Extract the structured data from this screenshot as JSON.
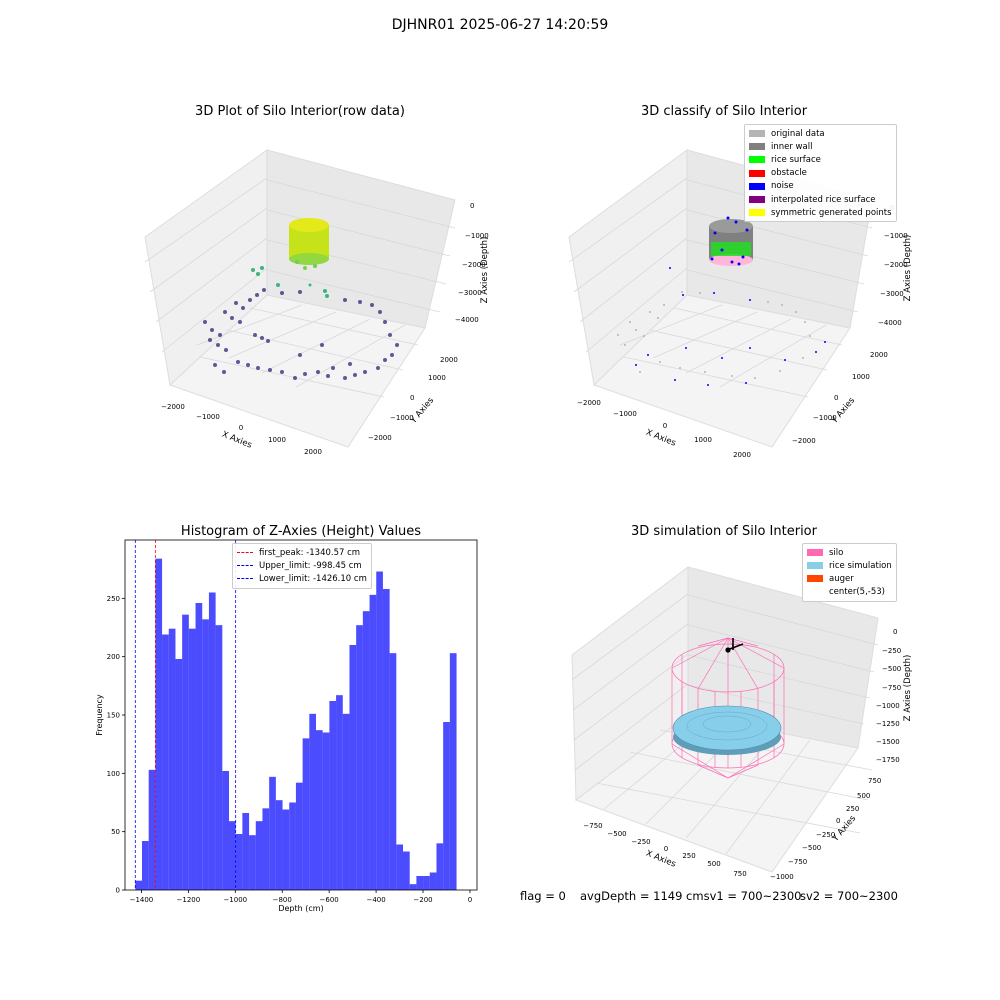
{
  "page": {
    "suptitle": "DJHNR01 2025-06-27 14:20:59",
    "status": {
      "flag": "flag = 0",
      "avg_depth": "avgDepth = 1149 cmsv1 = 700~2300",
      "sv2": "sv2 = 700~2300"
    }
  },
  "panels": {
    "raw": {
      "title": "3D Plot of Silo Interior(row data)",
      "xlabel": "X Axies",
      "ylabel": "Y Axies",
      "zlabel": "Z Axies (Depth)",
      "x_ticks": [
        "−2000",
        "−1000",
        "0",
        "1000",
        "2000"
      ],
      "y_ticks": [
        "2000",
        "1000",
        "0",
        "−1000",
        "−2000"
      ],
      "z_ticks": [
        "0",
        "−1000",
        "−2000",
        "−3000",
        "−4000"
      ]
    },
    "classify": {
      "title": "3D classify of Silo Interior",
      "xlabel": "X Axies",
      "ylabel": "Y Axies",
      "zlabel": "Z Axies (Depth)",
      "x_ticks": [
        "−2000",
        "−1000",
        "0",
        "1000",
        "2000"
      ],
      "y_ticks": [
        "2000",
        "1000",
        "0",
        "−1000",
        "−2000"
      ],
      "z_ticks": [
        "0",
        "−1000",
        "−2000",
        "−3000",
        "−4000"
      ],
      "legend": [
        {
          "label": "original data",
          "color": "#b4b4b4"
        },
        {
          "label": "inner wall",
          "color": "#808080"
        },
        {
          "label": "rice surface",
          "color": "#00ff00"
        },
        {
          "label": "obstacle",
          "color": "#ff0000"
        },
        {
          "label": "noise",
          "color": "#0000ff"
        },
        {
          "label": "interpolated rice surface",
          "color": "#800080"
        },
        {
          "label": "symmetric generated points",
          "color": "#ffff00"
        }
      ]
    },
    "simulation": {
      "title": "3D simulation of Silo Interior",
      "xlabel": "X Axies",
      "ylabel": "Y Axies",
      "zlabel": "Z Axies (Depth)",
      "x_ticks": [
        "−750",
        "−500",
        "−250",
        "0",
        "250",
        "500",
        "750"
      ],
      "y_ticks": [
        "750",
        "500",
        "250",
        "0",
        "−250",
        "−500",
        "−750",
        "−1000"
      ],
      "z_ticks": [
        "0",
        "−250",
        "−500",
        "−750",
        "−1000",
        "−1250",
        "−1500",
        "−1750"
      ],
      "legend": [
        {
          "label": "silo",
          "color": "#ff69b4"
        },
        {
          "label": "rice simulation",
          "color": "#87ceeb"
        },
        {
          "label": "auger",
          "color": "#ff4500"
        },
        {
          "label": "center(5,-53)",
          "color": ""
        }
      ]
    }
  },
  "chart_data": {
    "type": "bar",
    "title": "Histogram of Z-Axies (Height) Values",
    "xlabel": "Depth (cm)",
    "ylabel": "Frequency",
    "xlim": [
      -1470,
      30
    ],
    "ylim": [
      0,
      300
    ],
    "x_ticks": [
      -1400,
      -1200,
      -1000,
      -800,
      -600,
      -400,
      -200,
      0
    ],
    "y_ticks": [
      0,
      50,
      100,
      150,
      200,
      250
    ],
    "bin_start": -1426.1,
    "bin_width": 28.52,
    "values": [
      8,
      42,
      103,
      284,
      219,
      224,
      198,
      236,
      224,
      246,
      232,
      255,
      227,
      102,
      59,
      48,
      66,
      47,
      59,
      70,
      97,
      77,
      69,
      75,
      92,
      130,
      151,
      137,
      135,
      162,
      167,
      151,
      210,
      227,
      239,
      253,
      273,
      258,
      203,
      39,
      33,
      5,
      12,
      12,
      15,
      40,
      144,
      203
    ],
    "bar_color": "#0000ff",
    "bar_alpha": 0.7,
    "vlines": [
      {
        "label": "first_peak: -1340.57 cm",
        "x": -1340.57,
        "color": "#ff0000"
      },
      {
        "label": "Upper_limit: -998.45 cm",
        "x": -998.45,
        "color": "#0000ff"
      },
      {
        "label": "Lower_limit: -1426.10 cm",
        "x": -1426.1,
        "color": "#0000ff"
      }
    ],
    "legend_position": "upper center"
  }
}
